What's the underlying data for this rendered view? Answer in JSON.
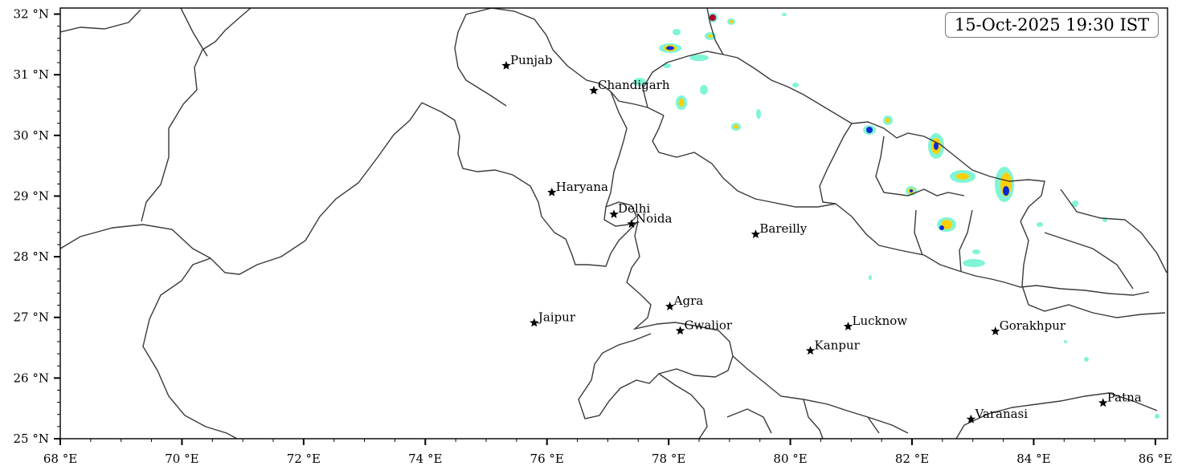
{
  "timestamp": "15-Oct-2025 19:30 IST",
  "map": {
    "lon_range": [
      68,
      86.2
    ],
    "lat_range": [
      25,
      32.1
    ],
    "x_ticks": [
      {
        "value": 68,
        "label": "68 °E"
      },
      {
        "value": 70,
        "label": "70 °E"
      },
      {
        "value": 72,
        "label": "72 °E"
      },
      {
        "value": 74,
        "label": "74 °E"
      },
      {
        "value": 76,
        "label": "76 °E"
      },
      {
        "value": 78,
        "label": "78 °E"
      },
      {
        "value": 80,
        "label": "80 °E"
      },
      {
        "value": 82,
        "label": "82 °E"
      },
      {
        "value": 84,
        "label": "84 °E"
      },
      {
        "value": 86,
        "label": "86 °E"
      }
    ],
    "y_ticks": [
      {
        "value": 25,
        "label": "25 °N"
      },
      {
        "value": 26,
        "label": "26 °N"
      },
      {
        "value": 27,
        "label": "27 °N"
      },
      {
        "value": 28,
        "label": "28 °N"
      },
      {
        "value": 29,
        "label": "29 °N"
      },
      {
        "value": 30,
        "label": "30 °N"
      },
      {
        "value": 31,
        "label": "31 °N"
      },
      {
        "value": 32,
        "label": "32 °N"
      }
    ],
    "cities": [
      {
        "name": "Punjab",
        "lon": 75.33,
        "lat": 31.15
      },
      {
        "name": "Chandigarh",
        "lon": 76.77,
        "lat": 30.74
      },
      {
        "name": "Haryana",
        "lon": 76.08,
        "lat": 29.06
      },
      {
        "name": "Delhi",
        "lon": 77.1,
        "lat": 28.7
      },
      {
        "name": "Noida",
        "lon": 77.39,
        "lat": 28.54
      },
      {
        "name": "Bareilly",
        "lon": 79.43,
        "lat": 28.37
      },
      {
        "name": "Agra",
        "lon": 78.02,
        "lat": 27.18
      },
      {
        "name": "Jaipur",
        "lon": 75.79,
        "lat": 26.91
      },
      {
        "name": "Gwalior",
        "lon": 78.19,
        "lat": 26.78
      },
      {
        "name": "Lucknow",
        "lon": 80.95,
        "lat": 26.85
      },
      {
        "name": "Kanpur",
        "lon": 80.33,
        "lat": 26.45
      },
      {
        "name": "Gorakhpur",
        "lon": 83.37,
        "lat": 26.77
      },
      {
        "name": "Patna",
        "lon": 85.14,
        "lat": 25.59
      },
      {
        "name": "Varanasi",
        "lon": 82.97,
        "lat": 25.32
      }
    ],
    "colors": {
      "boundary": "#3a3a3a",
      "precip_low": "#7ff5d6",
      "precip_mid": "#ffd000",
      "precip_high": "#0a2bd4",
      "precip_extreme": "#b0002a"
    }
  }
}
